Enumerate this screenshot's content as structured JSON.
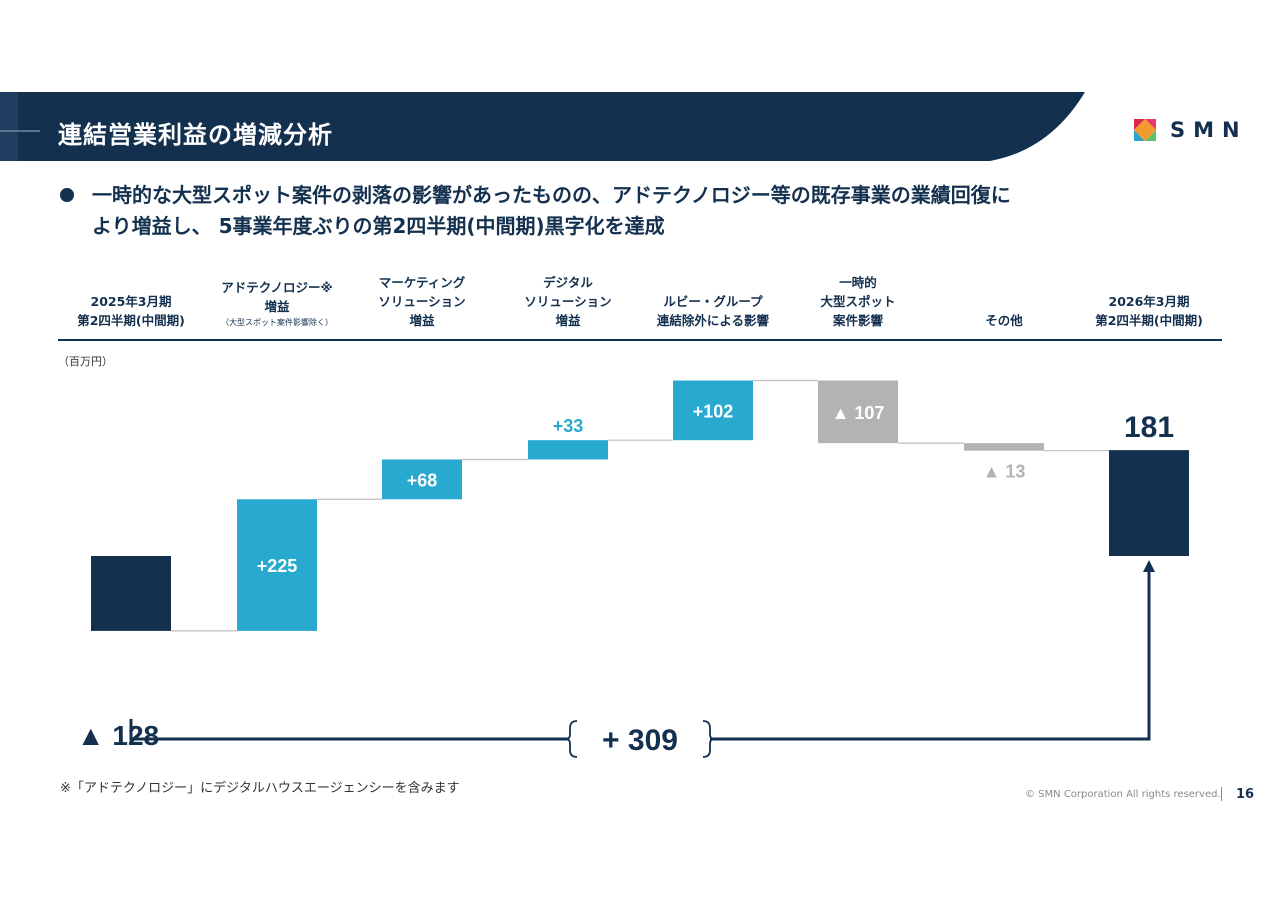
{
  "header": {
    "title": "連結営業利益の増減分析",
    "logo_text": "SMN"
  },
  "bullet": {
    "line1": "一時的な大型スポット案件の剥落の影響があったものの、アドテクノロジー等の既存事業の業績回復に",
    "line2": "より増益し、 5事業年度ぶりの第2四半期(中間期)黒字化を達成"
  },
  "unit_label": "（百万円）",
  "footnote": "※「アドテクノロジー」にデジタルハウスエージェンシーを含みます",
  "footer": {
    "copyright": "© SMN Corporation All rights reserved.",
    "page_number": "16"
  },
  "colors": {
    "navy": "#14304f",
    "cyan": "#28a9d0",
    "gray": "#b3b3b3",
    "connector": "#bfbfbf"
  },
  "chart_data": {
    "type": "bar",
    "subtype": "waterfall",
    "unit": "百万円",
    "categories": [
      "2025年3月期 第2四半期(中間期)",
      "アドテクノロジー※ 増益（大型スポット案件影響除く）",
      "マーケティング ソリューション 増益",
      "デジタル ソリューション 増益",
      "ルビー・グループ 連結除外による影響",
      "一時的 大型スポット 案件影響",
      "その他",
      "2026年3月期 第2四半期(中間期)"
    ],
    "column_headers": [
      {
        "lines": [
          "2025年3月期",
          "第2四半期(中間期)"
        ],
        "note": ""
      },
      {
        "lines": [
          "アドテクノロジー※",
          "増益"
        ],
        "note": "（大型スポット案件影響除く）"
      },
      {
        "lines": [
          "マーケティング",
          "ソリューション",
          "増益"
        ],
        "note": ""
      },
      {
        "lines": [
          "デジタル",
          "ソリューション",
          "増益"
        ],
        "note": ""
      },
      {
        "lines": [
          "ルビー・グループ",
          "連結除外による影響"
        ],
        "note": ""
      },
      {
        "lines": [
          "一時的",
          "大型スポット",
          "案件影響"
        ],
        "note": ""
      },
      {
        "lines": [
          "その他"
        ],
        "note": ""
      },
      {
        "lines": [
          "2026年3月期",
          "第2四半期(中間期)"
        ],
        "note": ""
      }
    ],
    "values": [
      -128,
      225,
      68,
      33,
      102,
      -107,
      -13,
      181
    ],
    "kinds": [
      "total",
      "increase",
      "increase",
      "increase",
      "increase",
      "decrease",
      "decrease",
      "total"
    ],
    "data_labels": [
      "▲ 128",
      "+225",
      "+68",
      "+33",
      "+102",
      "▲ 107",
      "▲ 13",
      "181"
    ],
    "total_change_label": "+ 309",
    "total_change_value": 309
  }
}
